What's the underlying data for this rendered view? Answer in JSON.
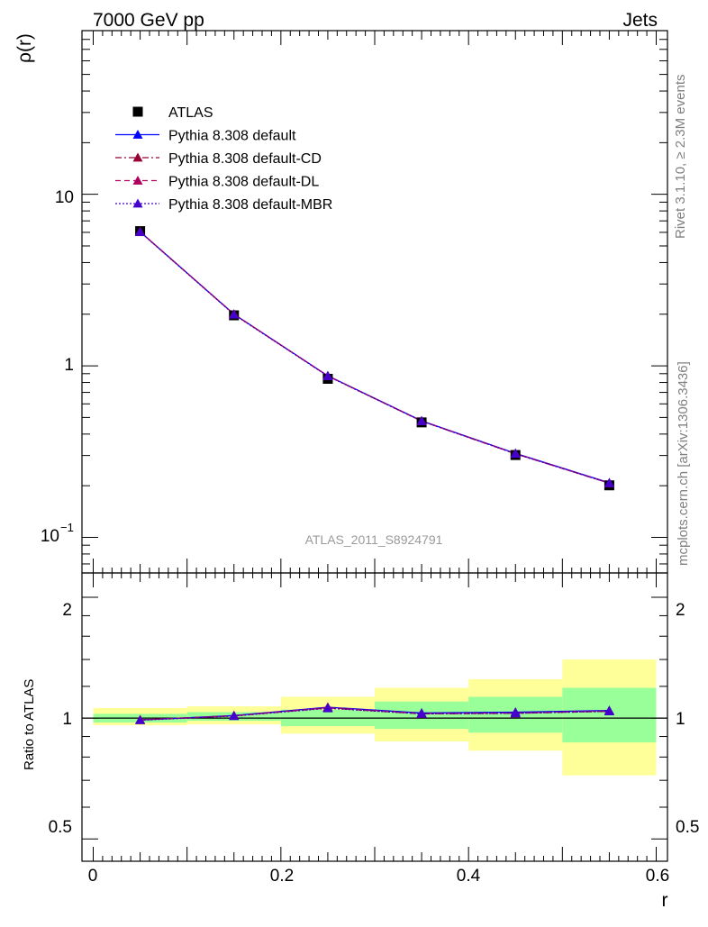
{
  "header": {
    "energy_label": "7000 GeV pp",
    "category_label": "Jets"
  },
  "side_text": {
    "rivet": "Rivet 3.1.10, ≥ 2.3M events",
    "site": "mcplots.cern.ch [arXiv:1306.3436]"
  },
  "watermark": "ATLAS_2011_S8924791",
  "main_panel": {
    "ylabel": "ρ(r)",
    "ytick_labels": {
      "ten": "10",
      "one": "1",
      "tenth_base": "10",
      "tenth_exp": "−1"
    }
  },
  "ratio_panel": {
    "ylabel": "Ratio to ATLAS",
    "ytick_labels": [
      "0.5",
      "1",
      "2"
    ]
  },
  "xaxis": {
    "xlabel": "r",
    "tick_labels": [
      "0",
      "0.2",
      "0.4",
      "0.6"
    ]
  },
  "legend": [
    {
      "label": "ATLAS"
    },
    {
      "label": "Pythia 8.308 default"
    },
    {
      "label": "Pythia 8.308 default-CD"
    },
    {
      "label": "Pythia 8.308 default-DL"
    },
    {
      "label": "Pythia 8.308 default-MBR"
    }
  ],
  "chart_data": [
    {
      "type": "line",
      "title": "",
      "xlabel": "r",
      "ylabel": "ρ(r)",
      "yscale": "log",
      "xlim": [
        -0.012,
        0.612
      ],
      "ylim": [
        0.062,
        90
      ],
      "x": [
        0.05,
        0.15,
        0.25,
        0.35,
        0.45,
        0.55
      ],
      "x_bins": [
        [
          0.0,
          0.1
        ],
        [
          0.1,
          0.2
        ],
        [
          0.2,
          0.3
        ],
        [
          0.3,
          0.4
        ],
        [
          0.4,
          0.5
        ],
        [
          0.5,
          0.6
        ]
      ],
      "series": [
        {
          "name": "ATLAS",
          "kind": "data",
          "color": "#000000",
          "values": [
            6.1,
            1.97,
            0.84,
            0.468,
            0.302,
            0.201
          ]
        },
        {
          "name": "Pythia 8.308 default",
          "color": "#0000ff",
          "dash": "solid",
          "values": [
            6.05,
            2.0,
            0.875,
            0.478,
            0.309,
            0.208
          ]
        },
        {
          "name": "Pythia 8.308 default-CD",
          "color": "#990033",
          "dash": "dashdot",
          "values": [
            6.04,
            2.0,
            0.872,
            0.476,
            0.307,
            0.207
          ]
        },
        {
          "name": "Pythia 8.308 default-DL",
          "color": "#b0005f",
          "dash": "dashed",
          "values": [
            6.05,
            2.0,
            0.874,
            0.477,
            0.308,
            0.207
          ]
        },
        {
          "name": "Pythia 8.308 default-MBR",
          "color": "#4400cc",
          "dash": "dotted",
          "values": [
            6.03,
            1.99,
            0.871,
            0.476,
            0.307,
            0.207
          ]
        }
      ],
      "grid": false,
      "legend_position": "top-left"
    },
    {
      "type": "line",
      "title": "",
      "xlabel": "r",
      "ylabel": "Ratio to ATLAS",
      "yscale": "log",
      "xlim": [
        -0.012,
        0.612
      ],
      "ylim": [
        0.44,
        2.3
      ],
      "x": [
        0.05,
        0.15,
        0.25,
        0.35,
        0.45,
        0.55
      ],
      "reference_line": 1.0,
      "bands": {
        "stat_color": "#99ff99",
        "total_color": "#ffff99",
        "stat": [
          [
            0.975,
            1.025
          ],
          [
            0.985,
            1.035
          ],
          [
            0.955,
            1.05
          ],
          [
            0.94,
            1.1
          ],
          [
            0.92,
            1.13
          ],
          [
            0.87,
            1.19
          ]
        ],
        "total": [
          [
            0.96,
            1.06
          ],
          [
            0.965,
            1.07
          ],
          [
            0.915,
            1.13
          ],
          [
            0.875,
            1.19
          ],
          [
            0.83,
            1.25
          ],
          [
            0.72,
            1.4
          ]
        ]
      },
      "series": [
        {
          "name": "Pythia 8.308 default",
          "color": "#0000ff",
          "dash": "solid",
          "values": [
            0.99,
            1.015,
            1.065,
            1.03,
            1.035,
            1.045
          ]
        },
        {
          "name": "Pythia 8.308 default-CD",
          "color": "#990033",
          "dash": "dashdot",
          "values": [
            0.99,
            1.013,
            1.06,
            1.025,
            1.028,
            1.04
          ]
        },
        {
          "name": "Pythia 8.308 default-DL",
          "color": "#b0005f",
          "dash": "dashed",
          "values": [
            0.99,
            1.014,
            1.062,
            1.027,
            1.03,
            1.042
          ]
        },
        {
          "name": "Pythia 8.308 default-MBR",
          "color": "#4400cc",
          "dash": "dotted",
          "values": [
            0.988,
            1.012,
            1.058,
            1.025,
            1.028,
            1.04
          ]
        }
      ]
    }
  ]
}
